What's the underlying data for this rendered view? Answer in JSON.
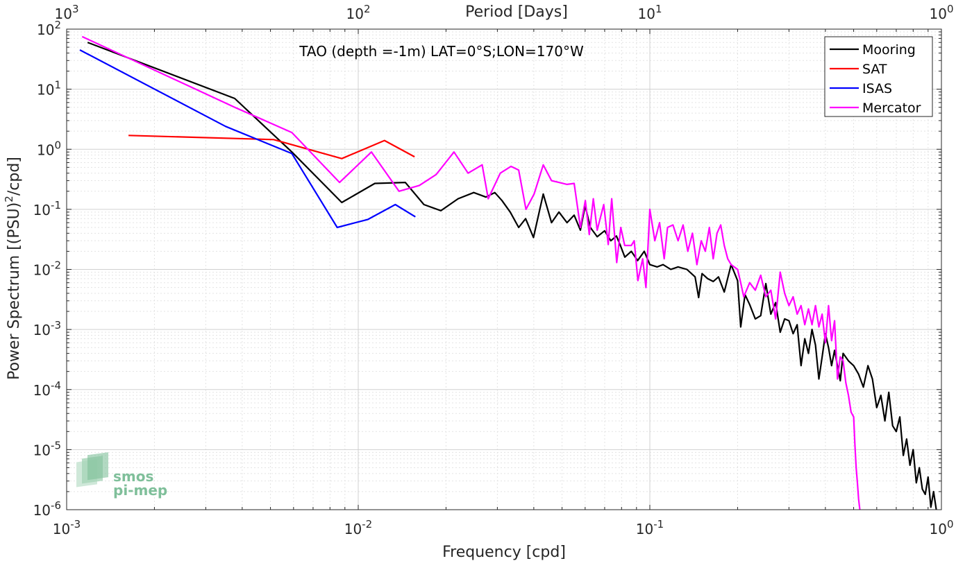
{
  "chart_data": {
    "type": "line",
    "title": "TAO (depth =-1m) LAT=0°S;LON=170°W",
    "xlabel": "Frequency [cpd]",
    "ylabel_parts": [
      "Power Spectrum [(PSU)",
      "2",
      "/cpd]"
    ],
    "top_xlabel": "Period [Days]",
    "xscale": "log",
    "yscale": "log",
    "xlim": [
      0.001,
      1
    ],
    "ylim": [
      1e-06,
      100
    ],
    "grid": true,
    "legend_position": "top-right",
    "x_ticks": [
      {
        "base": "10",
        "exp": "-3"
      },
      {
        "base": "10",
        "exp": "-2"
      },
      {
        "base": "10",
        "exp": "-1"
      },
      {
        "base": "10",
        "exp": "0"
      }
    ],
    "y_ticks": [
      {
        "base": "10",
        "exp": "-6"
      },
      {
        "base": "10",
        "exp": "-5"
      },
      {
        "base": "10",
        "exp": "-4"
      },
      {
        "base": "10",
        "exp": "-3"
      },
      {
        "base": "10",
        "exp": "-2"
      },
      {
        "base": "10",
        "exp": "-1"
      },
      {
        "base": "10",
        "exp": "0"
      },
      {
        "base": "10",
        "exp": "1"
      },
      {
        "base": "10",
        "exp": "2"
      }
    ],
    "top_ticks": [
      {
        "base": "10",
        "exp": "3"
      },
      {
        "base": "10",
        "exp": "2"
      },
      {
        "base": "10",
        "exp": "1"
      },
      {
        "base": "10",
        "exp": "0"
      }
    ],
    "series": [
      {
        "name": "Mooring",
        "color": "#000000",
        "points": [
          [
            0.00118,
            60
          ],
          [
            0.00377,
            7
          ],
          [
            0.00592,
            0.9
          ],
          [
            0.00878,
            0.13
          ],
          [
            0.0114,
            0.27
          ],
          [
            0.0145,
            0.28
          ],
          [
            0.0168,
            0.12
          ],
          [
            0.0192,
            0.095
          ],
          [
            0.022,
            0.15
          ],
          [
            0.0249,
            0.19
          ],
          [
            0.0274,
            0.16
          ],
          [
            0.0294,
            0.19
          ],
          [
            0.0311,
            0.14
          ],
          [
            0.0332,
            0.09
          ],
          [
            0.0355,
            0.05
          ],
          [
            0.0375,
            0.07
          ],
          [
            0.0399,
            0.034
          ],
          [
            0.0431,
            0.18
          ],
          [
            0.046,
            0.06
          ],
          [
            0.0488,
            0.09
          ],
          [
            0.052,
            0.06
          ],
          [
            0.055,
            0.08
          ],
          [
            0.0578,
            0.045
          ],
          [
            0.06,
            0.115
          ],
          [
            0.0625,
            0.05
          ],
          [
            0.066,
            0.035
          ],
          [
            0.07,
            0.044
          ],
          [
            0.0735,
            0.03
          ],
          [
            0.0768,
            0.036
          ],
          [
            0.0795,
            0.024
          ],
          [
            0.0821,
            0.016
          ],
          [
            0.0864,
            0.02
          ],
          [
            0.0908,
            0.014
          ],
          [
            0.0957,
            0.02
          ],
          [
            0.1,
            0.012
          ],
          [
            0.106,
            0.011
          ],
          [
            0.111,
            0.012
          ],
          [
            0.118,
            0.01
          ],
          [
            0.125,
            0.011
          ],
          [
            0.134,
            0.01
          ],
          [
            0.143,
            0.0075
          ],
          [
            0.147,
            0.0034
          ],
          [
            0.151,
            0.0085
          ],
          [
            0.158,
            0.007
          ],
          [
            0.165,
            0.0063
          ],
          [
            0.172,
            0.0075
          ],
          [
            0.18,
            0.0042
          ],
          [
            0.19,
            0.012
          ],
          [
            0.2,
            0.0065
          ],
          [
            0.205,
            0.0011
          ],
          [
            0.212,
            0.0038
          ],
          [
            0.22,
            0.0026
          ],
          [
            0.23,
            0.0015
          ],
          [
            0.24,
            0.0017
          ],
          [
            0.25,
            0.0058
          ],
          [
            0.26,
            0.0018
          ],
          [
            0.27,
            0.0028
          ],
          [
            0.28,
            0.0009
          ],
          [
            0.29,
            0.0015
          ],
          [
            0.3,
            0.0014
          ],
          [
            0.31,
            0.00085
          ],
          [
            0.32,
            0.0012
          ],
          [
            0.33,
            0.00025
          ],
          [
            0.34,
            0.0007
          ],
          [
            0.35,
            0.0004
          ],
          [
            0.36,
            0.001
          ],
          [
            0.37,
            0.00055
          ],
          [
            0.38,
            0.00015
          ],
          [
            0.39,
            0.00035
          ],
          [
            0.4,
            0.00085
          ],
          [
            0.41,
            0.0005
          ],
          [
            0.42,
            0.00025
          ],
          [
            0.43,
            0.00045
          ],
          [
            0.45,
            0.00014
          ],
          [
            0.46,
            0.0004
          ],
          [
            0.48,
            0.0003
          ],
          [
            0.5,
            0.00025
          ],
          [
            0.52,
            0.00018
          ],
          [
            0.54,
            0.00011
          ],
          [
            0.56,
            0.00025
          ],
          [
            0.58,
            0.00015
          ],
          [
            0.6,
            5e-05
          ],
          [
            0.62,
            8e-05
          ],
          [
            0.64,
            3e-05
          ],
          [
            0.66,
            9e-05
          ],
          [
            0.68,
            2.5e-05
          ],
          [
            0.7,
            2e-05
          ],
          [
            0.72,
            3.5e-05
          ],
          [
            0.74,
            8e-06
          ],
          [
            0.76,
            1.5e-05
          ],
          [
            0.78,
            5.5e-06
          ],
          [
            0.8,
            1e-05
          ],
          [
            0.82,
            2.8e-06
          ],
          [
            0.84,
            5e-06
          ],
          [
            0.86,
            2.2e-06
          ],
          [
            0.88,
            1.8e-06
          ],
          [
            0.9,
            3.5e-06
          ],
          [
            0.92,
            1.1e-06
          ],
          [
            0.94,
            2e-06
          ],
          [
            0.96,
            1e-06
          ]
        ]
      },
      {
        "name": "SAT",
        "color": "#ff0000",
        "points": [
          [
            0.00163,
            1.7
          ],
          [
            0.00513,
            1.45
          ],
          [
            0.00878,
            0.7
          ],
          [
            0.0123,
            1.4
          ],
          [
            0.0156,
            0.75
          ]
        ]
      },
      {
        "name": "ISAS",
        "color": "#0000ff",
        "points": [
          [
            0.00111,
            45
          ],
          [
            0.00351,
            2.4
          ],
          [
            0.00592,
            0.85
          ],
          [
            0.00847,
            0.05
          ],
          [
            0.0108,
            0.068
          ],
          [
            0.0134,
            0.12
          ],
          [
            0.0157,
            0.075
          ]
        ]
      },
      {
        "name": "Mercator",
        "color": "#ff00ff",
        "points": [
          [
            0.00113,
            75
          ],
          [
            0.00377,
            5
          ],
          [
            0.00592,
            1.9
          ],
          [
            0.00863,
            0.28
          ],
          [
            0.0111,
            0.9
          ],
          [
            0.0138,
            0.2
          ],
          [
            0.0162,
            0.25
          ],
          [
            0.0185,
            0.38
          ],
          [
            0.0213,
            0.9
          ],
          [
            0.0238,
            0.4
          ],
          [
            0.0266,
            0.55
          ],
          [
            0.0279,
            0.15
          ],
          [
            0.0307,
            0.4
          ],
          [
            0.0334,
            0.52
          ],
          [
            0.0355,
            0.45
          ],
          [
            0.0376,
            0.1
          ],
          [
            0.0401,
            0.18
          ],
          [
            0.0431,
            0.55
          ],
          [
            0.046,
            0.3
          ],
          [
            0.0488,
            0.28
          ],
          [
            0.052,
            0.26
          ],
          [
            0.055,
            0.27
          ],
          [
            0.0578,
            0.05
          ],
          [
            0.0601,
            0.14
          ],
          [
            0.062,
            0.038
          ],
          [
            0.064,
            0.15
          ],
          [
            0.066,
            0.045
          ],
          [
            0.0695,
            0.12
          ],
          [
            0.072,
            0.026
          ],
          [
            0.074,
            0.15
          ],
          [
            0.077,
            0.013
          ],
          [
            0.0795,
            0.05
          ],
          [
            0.082,
            0.025
          ],
          [
            0.0864,
            0.025
          ],
          [
            0.0884,
            0.03
          ],
          [
            0.091,
            0.0065
          ],
          [
            0.0945,
            0.015
          ],
          [
            0.097,
            0.005
          ],
          [
            0.1,
            0.1
          ],
          [
            0.104,
            0.03
          ],
          [
            0.108,
            0.06
          ],
          [
            0.112,
            0.015
          ],
          [
            0.115,
            0.05
          ],
          [
            0.12,
            0.055
          ],
          [
            0.125,
            0.03
          ],
          [
            0.13,
            0.055
          ],
          [
            0.135,
            0.02
          ],
          [
            0.14,
            0.04
          ],
          [
            0.145,
            0.012
          ],
          [
            0.15,
            0.03
          ],
          [
            0.155,
            0.02
          ],
          [
            0.16,
            0.05
          ],
          [
            0.165,
            0.015
          ],
          [
            0.17,
            0.04
          ],
          [
            0.175,
            0.055
          ],
          [
            0.18,
            0.025
          ],
          [
            0.185,
            0.015
          ],
          [
            0.19,
            0.012
          ],
          [
            0.2,
            0.01
          ],
          [
            0.205,
            0.006
          ],
          [
            0.21,
            0.0035
          ],
          [
            0.22,
            0.006
          ],
          [
            0.23,
            0.0045
          ],
          [
            0.24,
            0.008
          ],
          [
            0.25,
            0.0035
          ],
          [
            0.26,
            0.0045
          ],
          [
            0.27,
            0.0015
          ],
          [
            0.28,
            0.009
          ],
          [
            0.29,
            0.004
          ],
          [
            0.3,
            0.0025
          ],
          [
            0.31,
            0.0035
          ],
          [
            0.32,
            0.0018
          ],
          [
            0.33,
            0.0025
          ],
          [
            0.34,
            0.0012
          ],
          [
            0.35,
            0.0022
          ],
          [
            0.36,
            0.0012
          ],
          [
            0.37,
            0.0025
          ],
          [
            0.38,
            0.0011
          ],
          [
            0.39,
            0.0018
          ],
          [
            0.4,
            0.0006
          ],
          [
            0.41,
            0.0025
          ],
          [
            0.42,
            0.00065
          ],
          [
            0.43,
            0.0014
          ],
          [
            0.44,
            0.00015
          ],
          [
            0.45,
            0.00035
          ],
          [
            0.46,
            0.0003
          ],
          [
            0.47,
            0.00013
          ],
          [
            0.48,
            8e-05
          ],
          [
            0.49,
            4.2e-05
          ],
          [
            0.5,
            3.5e-05
          ],
          [
            0.505,
            1.2e-05
          ],
          [
            0.51,
            5e-06
          ],
          [
            0.515,
            2.8e-06
          ],
          [
            0.52,
            1.5e-06
          ],
          [
            0.525,
            1e-06
          ]
        ]
      }
    ]
  },
  "logo": {
    "text_line1": "smos",
    "text_line2": "pi-mep"
  }
}
